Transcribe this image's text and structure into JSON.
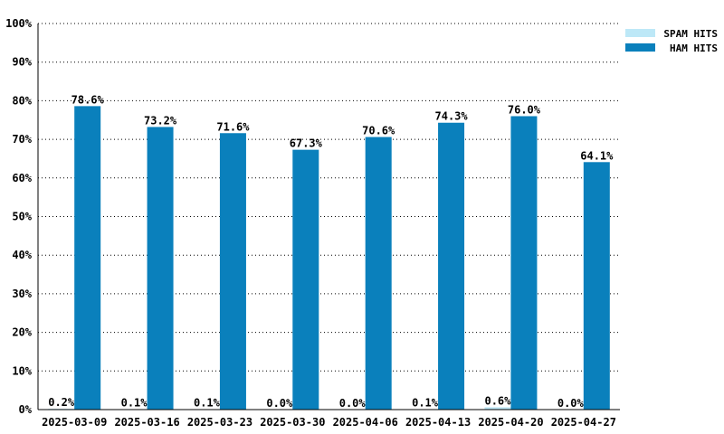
{
  "chart_data": {
    "type": "bar",
    "categories": [
      "2025-03-09",
      "2025-03-16",
      "2025-03-23",
      "2025-03-30",
      "2025-04-06",
      "2025-04-13",
      "2025-04-20",
      "2025-04-27"
    ],
    "series": [
      {
        "name": "SPAM HITS",
        "color": "#bde8f7",
        "values": [
          0.2,
          0.1,
          0.1,
          0.0,
          0.0,
          0.1,
          0.6,
          0.0
        ],
        "labels": [
          "0.2%",
          "0.1%",
          "0.1%",
          "0.0%",
          "0.0%",
          "0.1%",
          "0.6%",
          "0.0%"
        ]
      },
      {
        "name": "HAM HITS",
        "color": "#0a80bc",
        "values": [
          78.6,
          73.2,
          71.6,
          67.3,
          70.6,
          74.3,
          76.0,
          64.1
        ],
        "labels": [
          "78.6%",
          "73.2%",
          "71.6%",
          "67.3%",
          "70.6%",
          "74.3%",
          "76.0%",
          "64.1%"
        ]
      }
    ],
    "y_ticks": [
      "0%",
      "10%",
      "20%",
      "30%",
      "40%",
      "50%",
      "60%",
      "70%",
      "80%",
      "90%",
      "100%"
    ],
    "ylim": [
      0,
      100
    ],
    "grid": true,
    "legend_position": "top-right",
    "title": "",
    "xlabel": "",
    "ylabel": ""
  }
}
